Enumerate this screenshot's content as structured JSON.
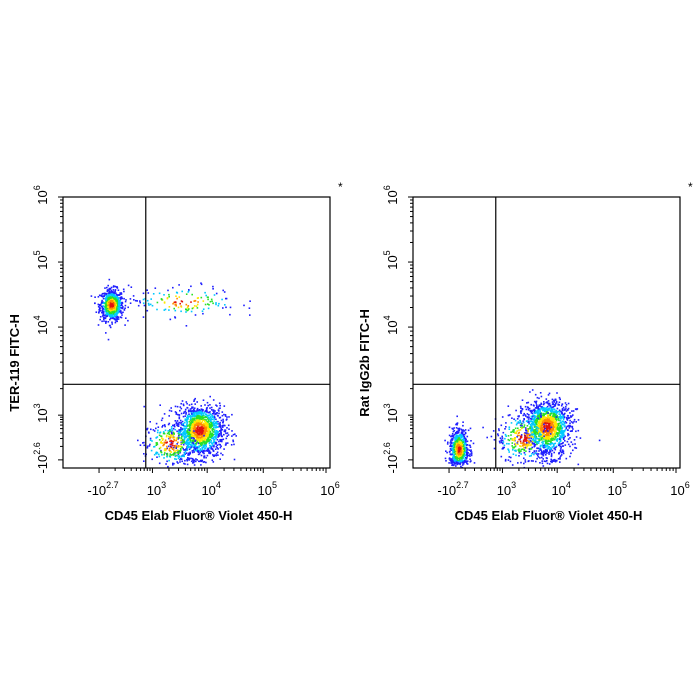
{
  "chart_data": [
    {
      "type": "scatter",
      "plot_kind": "flow-cytometry-density-dot-plot",
      "xlabel": "CD45 Elab Fluor® Violet 450-H",
      "ylabel": "TER-119 FITC-H",
      "corner_mark": "*",
      "x_scale": "biexponential",
      "y_scale": "biexponential",
      "x_ticks": [
        {
          "base": "-10",
          "exp": "2.7"
        },
        {
          "base": "10",
          "exp": "3"
        },
        {
          "base": "10",
          "exp": "4"
        },
        {
          "base": "10",
          "exp": "5"
        },
        {
          "base": "10",
          "exp": "6"
        }
      ],
      "y_ticks": [
        {
          "base": "-10",
          "exp": "2.6"
        },
        {
          "base": "10",
          "exp": "3"
        },
        {
          "base": "10",
          "exp": "4"
        },
        {
          "base": "10",
          "exp": "5"
        },
        {
          "base": "10",
          "exp": "6"
        }
      ],
      "gate_x_log10": 2.85,
      "gate_y_log10": 3.35,
      "color_scale": [
        "#1f1fff",
        "#00c8ff",
        "#28e028",
        "#ffe600",
        "#ff8a00",
        "#e01010"
      ],
      "populations": [
        {
          "x_log10": 2.2,
          "y_log10": 4.35,
          "spread_x": 0.11,
          "spread_y": 0.12,
          "count": 700
        },
        {
          "x_log10": 3.85,
          "y_log10": 2.87,
          "spread_x": 0.22,
          "spread_y": 0.12,
          "count": 1300
        },
        {
          "x_log10": 3.3,
          "y_log10": 2.75,
          "spread_x": 0.25,
          "spread_y": 0.1,
          "count": 300
        },
        {
          "x_log10": 3.55,
          "y_log10": 4.4,
          "spread_x": 0.5,
          "spread_y": 0.12,
          "count": 150
        }
      ]
    },
    {
      "type": "scatter",
      "plot_kind": "flow-cytometry-density-dot-plot",
      "xlabel": "CD45 Elab Fluor® Violet 450-H",
      "ylabel": "Rat IgG2b FITC-H",
      "corner_mark": "*",
      "x_scale": "biexponential",
      "y_scale": "biexponential",
      "x_ticks": [
        {
          "base": "-10",
          "exp": "2.7"
        },
        {
          "base": "10",
          "exp": "3"
        },
        {
          "base": "10",
          "exp": "4"
        },
        {
          "base": "10",
          "exp": "5"
        },
        {
          "base": "10",
          "exp": "6"
        }
      ],
      "y_ticks": [
        {
          "base": "-10",
          "exp": "2.6"
        },
        {
          "base": "10",
          "exp": "3"
        },
        {
          "base": "10",
          "exp": "4"
        },
        {
          "base": "10",
          "exp": "5"
        },
        {
          "base": "10",
          "exp": "6"
        }
      ],
      "gate_x_log10": 2.85,
      "gate_y_log10": 3.35,
      "color_scale": [
        "#1f1fff",
        "#00c8ff",
        "#28e028",
        "#ffe600",
        "#ff8a00",
        "#e01010"
      ],
      "populations": [
        {
          "x_log10": 2.15,
          "y_log10": 2.7,
          "spread_x": 0.09,
          "spread_y": 0.09,
          "count": 650
        },
        {
          "x_log10": 3.8,
          "y_log10": 2.9,
          "spread_x": 0.22,
          "spread_y": 0.13,
          "count": 1300
        },
        {
          "x_log10": 3.35,
          "y_log10": 2.8,
          "spread_x": 0.25,
          "spread_y": 0.11,
          "count": 300
        }
      ]
    }
  ]
}
